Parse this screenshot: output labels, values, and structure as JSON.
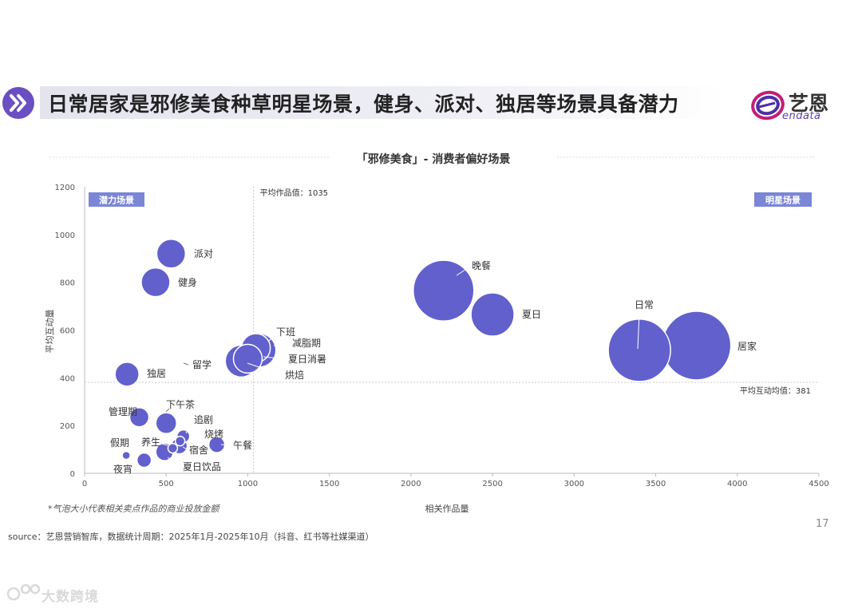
{
  "header": {
    "title": "日常居家是邪修美食种草明星场景，健身、派对、独居等场景具备潜力"
  },
  "logo": {
    "cn": "艺恩",
    "en": "endata"
  },
  "page_number": "17",
  "source": "source：艺恩营销智库，数据统计周期：2025年1月-2025年10月（抖音、红书等社媒渠道）",
  "watermark": "大数跨境",
  "colors": {
    "bubble": "#6160cc",
    "accent": "#6a4fc2",
    "quadrant_tag": "#7b86d6"
  },
  "chart_data": {
    "type": "scatter",
    "title": "「邪修美食」- 消费者偏好场景",
    "xlabel": "相关作品量",
    "ylabel": "平均互动量",
    "xlim": [
      0,
      4500
    ],
    "ylim": [
      0,
      1200
    ],
    "xticks": [
      0,
      500,
      1000,
      1500,
      2000,
      2500,
      3000,
      3500,
      4000,
      4500
    ],
    "yticks": [
      0,
      200,
      400,
      600,
      800,
      1000,
      1200
    ],
    "grid": false,
    "bubble_note": "*气泡大小代表相关卖点作品的商业投放金额",
    "ref_x": {
      "value": 1035,
      "label": "平均作品值：1035"
    },
    "ref_y": {
      "value": 381,
      "label": "平均互动均值：381"
    },
    "quadrants": {
      "top_left": "潜力场景",
      "top_right": "明星场景"
    },
    "points": [
      {
        "name": "派对",
        "x": 530,
        "y": 920,
        "size": 18
      },
      {
        "name": "健身",
        "x": 435,
        "y": 800,
        "size": 18
      },
      {
        "name": "独居",
        "x": 260,
        "y": 415,
        "size": 15
      },
      {
        "name": "留学",
        "x": 630,
        "y": 460,
        "size": 1
      },
      {
        "name": "下班",
        "x": 1070,
        "y": 515,
        "size": 21
      },
      {
        "name": "减脂期",
        "x": 1050,
        "y": 525,
        "size": 18
      },
      {
        "name": "夏日消暑",
        "x": 1000,
        "y": 480,
        "size": 18
      },
      {
        "name": "烘焙",
        "x": 960,
        "y": 470,
        "size": 20
      },
      {
        "name": "管理期",
        "x": 335,
        "y": 235,
        "size": 12
      },
      {
        "name": "下午茶",
        "x": 500,
        "y": 210,
        "size": 13
      },
      {
        "name": "追剧",
        "x": 605,
        "y": 155,
        "size": 8
      },
      {
        "name": "烧烤",
        "x": 585,
        "y": 135,
        "size": 6
      },
      {
        "name": "午餐",
        "x": 810,
        "y": 120,
        "size": 10
      },
      {
        "name": "宿舍",
        "x": 580,
        "y": 115,
        "size": 10
      },
      {
        "name": "养生",
        "x": 540,
        "y": 105,
        "size": 6
      },
      {
        "name": "假期",
        "x": 255,
        "y": 75,
        "size": 5
      },
      {
        "name": "夏日饮品",
        "x": 490,
        "y": 90,
        "size": 11
      },
      {
        "name": "夜宵",
        "x": 365,
        "y": 55,
        "size": 9
      },
      {
        "name": "晚餐",
        "x": 2200,
        "y": 765,
        "size": 38
      },
      {
        "name": "夏日",
        "x": 2500,
        "y": 665,
        "size": 27
      },
      {
        "name": "日常",
        "x": 3400,
        "y": 515,
        "size": 39
      },
      {
        "name": "居家",
        "x": 3750,
        "y": 535,
        "size": 43
      }
    ]
  }
}
